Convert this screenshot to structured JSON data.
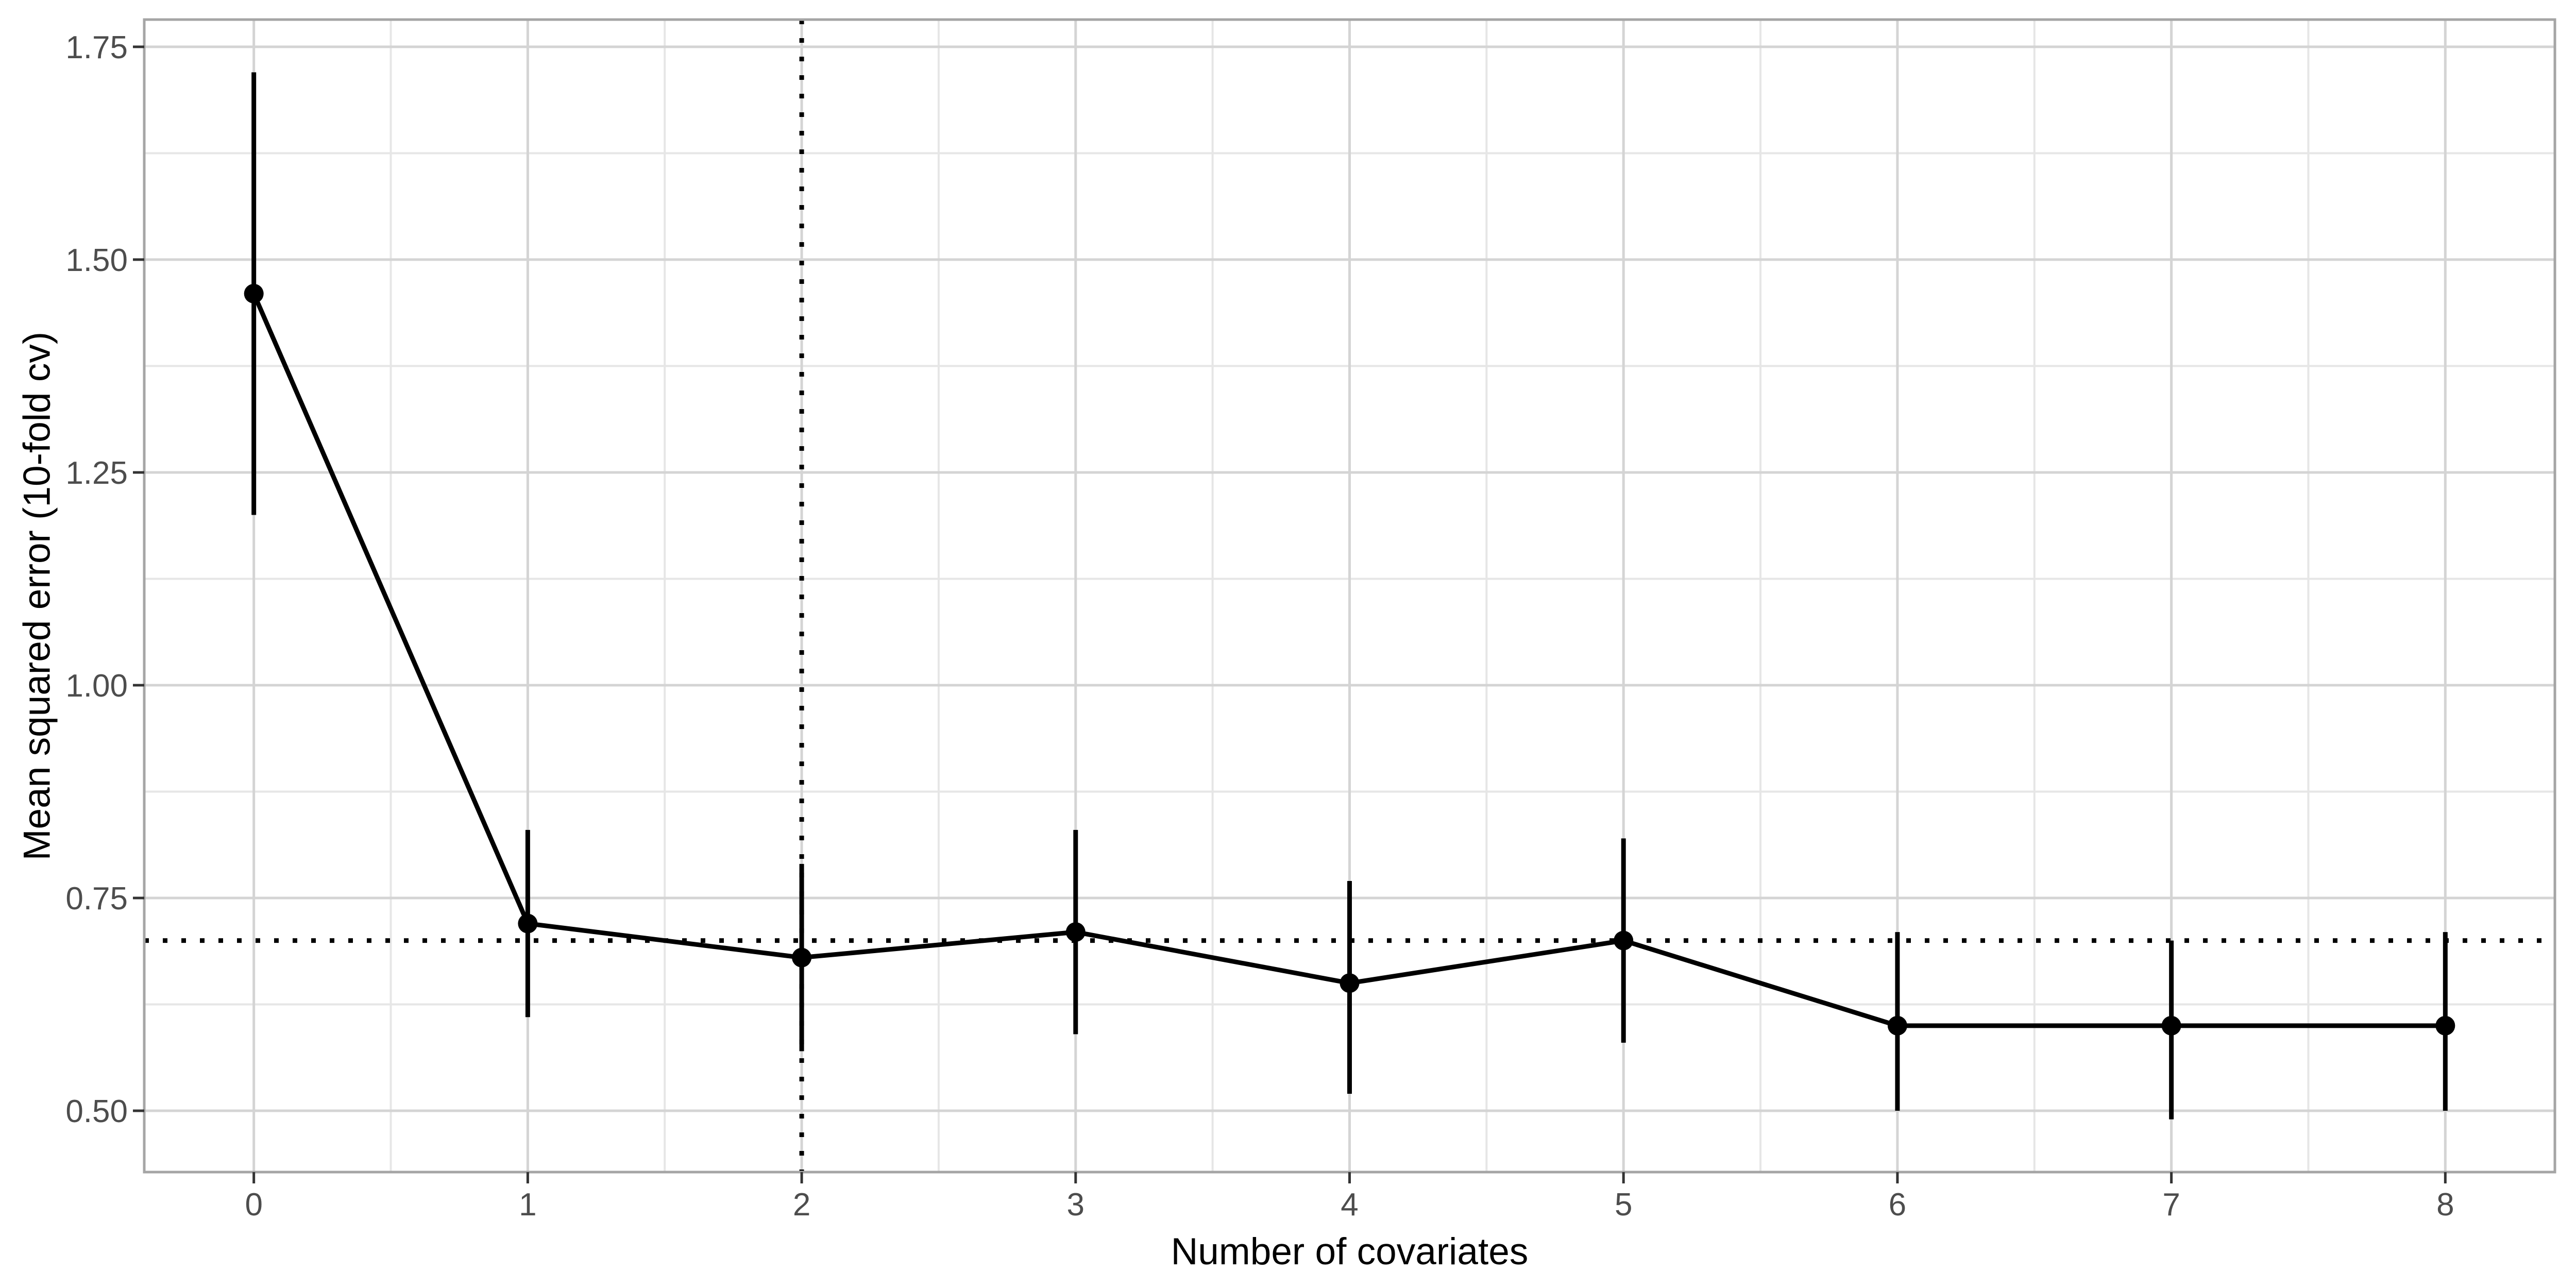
{
  "chart_data": {
    "type": "line",
    "title": "",
    "xlabel": "Number of covariates",
    "ylabel": "Mean squared error (10-fold cv)",
    "x": [
      0,
      1,
      2,
      3,
      4,
      5,
      6,
      7,
      8
    ],
    "points": [
      {
        "x": 0,
        "y": 1.46,
        "ymin": 1.2,
        "ymax": 1.72
      },
      {
        "x": 1,
        "y": 0.72,
        "ymin": 0.61,
        "ymax": 0.83
      },
      {
        "x": 2,
        "y": 0.68,
        "ymin": 0.57,
        "ymax": 0.79
      },
      {
        "x": 3,
        "y": 0.71,
        "ymin": 0.59,
        "ymax": 0.83
      },
      {
        "x": 4,
        "y": 0.65,
        "ymin": 0.52,
        "ymax": 0.77
      },
      {
        "x": 5,
        "y": 0.7,
        "ymin": 0.58,
        "ymax": 0.82
      },
      {
        "x": 6,
        "y": 0.6,
        "ymin": 0.5,
        "ymax": 0.71
      },
      {
        "x": 7,
        "y": 0.6,
        "ymin": 0.49,
        "ymax": 0.7
      },
      {
        "x": 8,
        "y": 0.6,
        "ymin": 0.5,
        "ymax": 0.71
      }
    ],
    "series_name": "Mean squared error (10-fold cv)",
    "error_bars": true,
    "reference_lines": {
      "horizontal_y": 0.7,
      "vertical_x": 2,
      "line_style": "dotted",
      "color": "#000000"
    },
    "x_ticks": [
      {
        "value": 0,
        "label": "0"
      },
      {
        "value": 1,
        "label": "1"
      },
      {
        "value": 2,
        "label": "2"
      },
      {
        "value": 3,
        "label": "3"
      },
      {
        "value": 4,
        "label": "4"
      },
      {
        "value": 5,
        "label": "5"
      },
      {
        "value": 6,
        "label": "6"
      },
      {
        "value": 7,
        "label": "7"
      },
      {
        "value": 8,
        "label": "8"
      }
    ],
    "y_ticks": [
      {
        "value": 0.5,
        "label": "0.50"
      },
      {
        "value": 0.75,
        "label": "0.75"
      },
      {
        "value": 1.0,
        "label": "1.00"
      },
      {
        "value": 1.25,
        "label": "1.25"
      },
      {
        "value": 1.5,
        "label": "1.50"
      },
      {
        "value": 1.75,
        "label": "1.75"
      }
    ],
    "xlim": [
      -0.4,
      8.4
    ],
    "ylim": [
      0.428,
      1.782
    ],
    "grid": true,
    "grid_minor": true,
    "legend": false,
    "colors": {
      "series": "#000000",
      "point": "#000000",
      "grid_major": "#D4D4D4",
      "grid_minor": "#E6E6E6",
      "panel_border": "#A5A5A5",
      "tick_mark": "#333333",
      "tick_label": "#4D4D4D",
      "axis_title": "#000000",
      "panel_background": "#FFFFFF"
    }
  }
}
